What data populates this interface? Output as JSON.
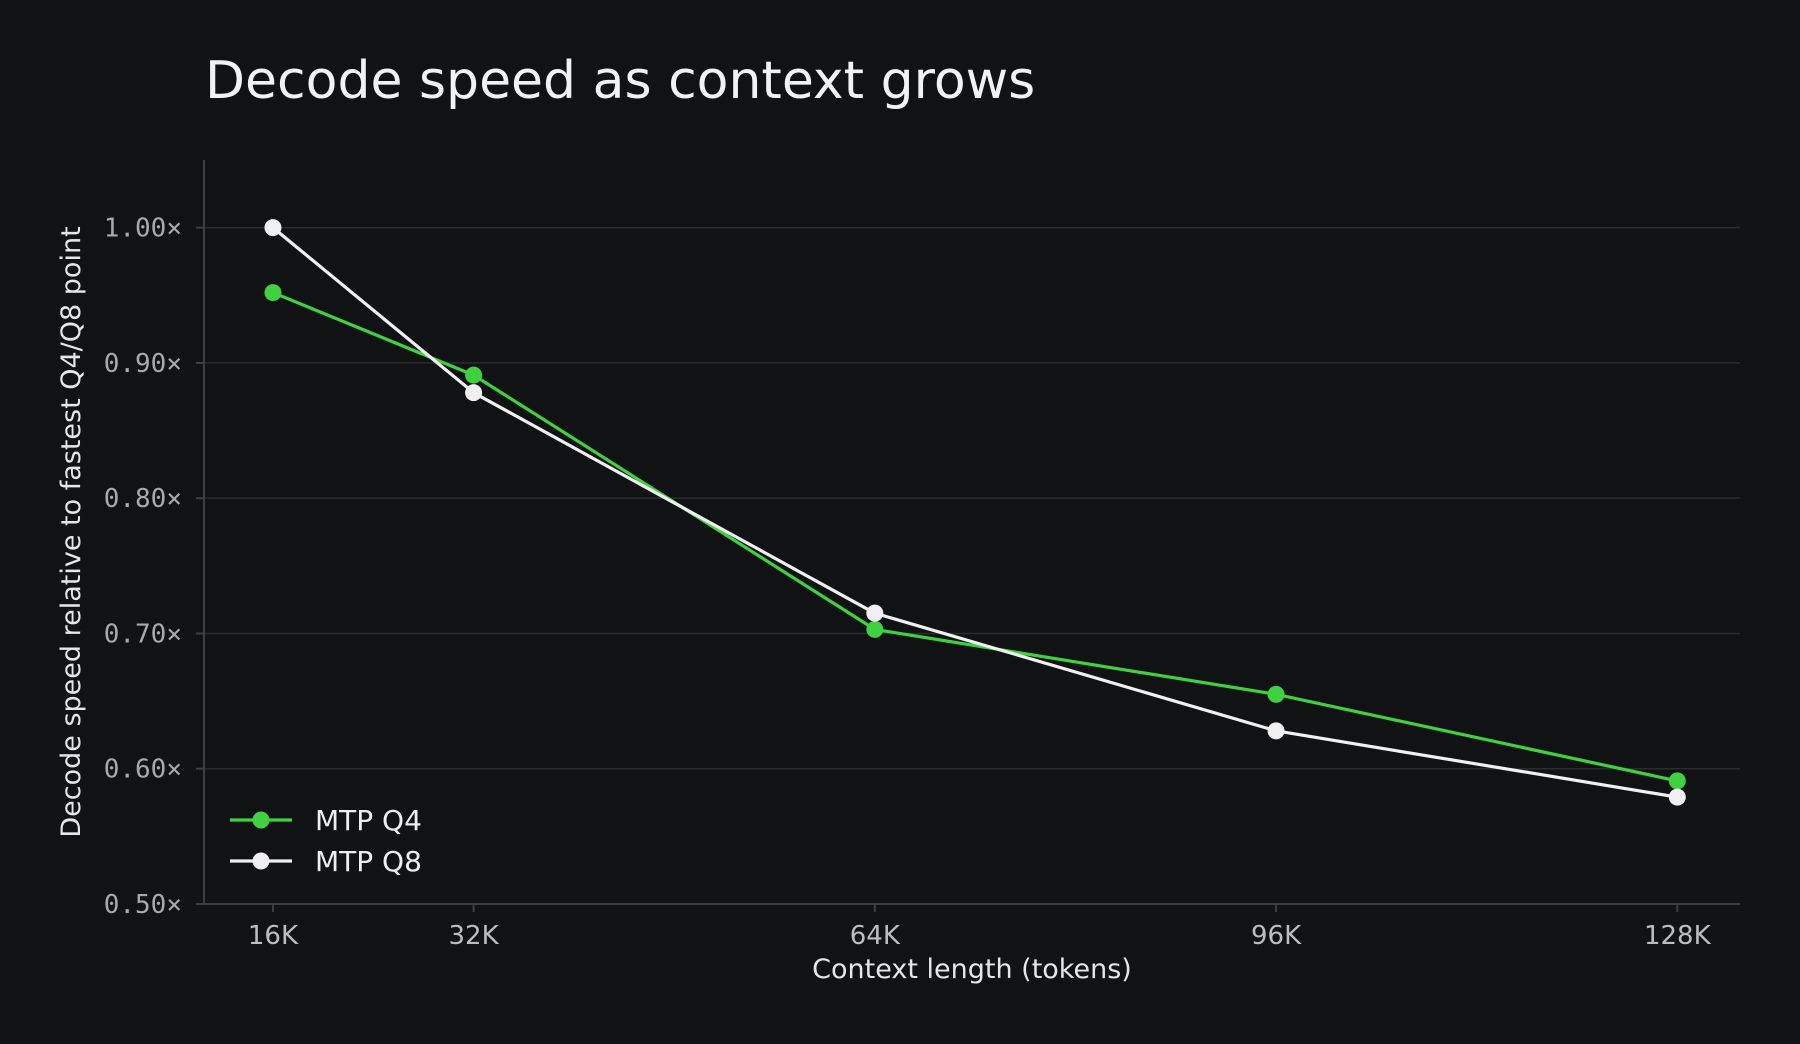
{
  "chart_data": {
    "type": "line",
    "title": "Decode speed as context grows",
    "xlabel": "Context length (tokens)",
    "ylabel": "Decode speed relative to fastest Q4/Q8 point",
    "x": [
      16,
      32,
      64,
      96,
      128
    ],
    "x_tick_labels": [
      "16K",
      "32K",
      "64K",
      "96K",
      "128K"
    ],
    "xlim": [
      10.5,
      133
    ],
    "ylim": [
      0.5,
      1.05
    ],
    "y_ticks": [
      0.5,
      0.6,
      0.7,
      0.8,
      0.9,
      1.0
    ],
    "y_tick_labels": [
      "0.50×",
      "0.60×",
      "0.70×",
      "0.80×",
      "0.90×",
      "1.00×"
    ],
    "grid": true,
    "legend_position": "bottom-left",
    "series": [
      {
        "name": "MTP Q4",
        "color": "#3fd13f",
        "values": [
          0.952,
          0.891,
          0.703,
          0.655,
          0.591
        ]
      },
      {
        "name": "MTP Q8",
        "color": "#f0f0f0",
        "values": [
          1.0,
          0.878,
          0.715,
          0.628,
          0.579
        ]
      }
    ],
    "background": "#111214"
  }
}
